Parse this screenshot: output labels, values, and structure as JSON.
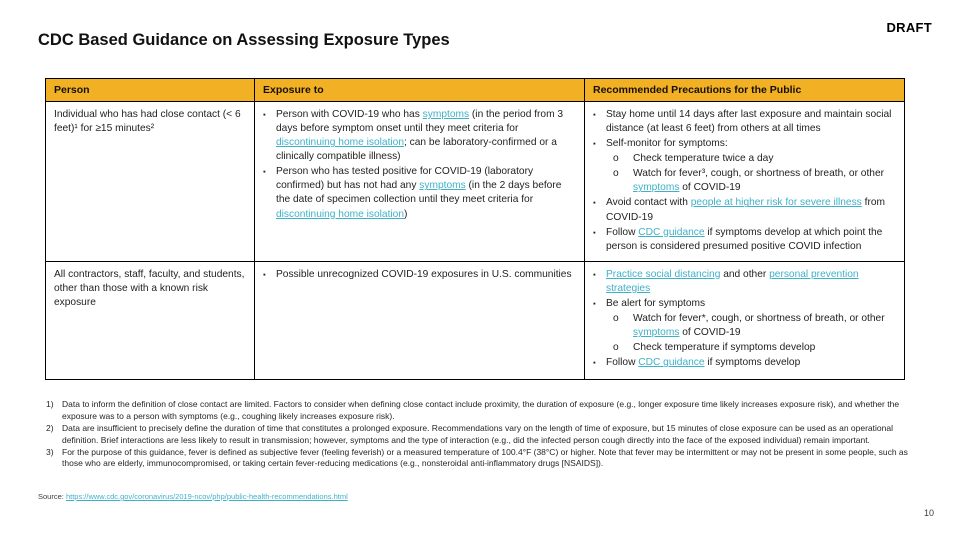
{
  "slide": {
    "title": "CDC Based Guidance on Assessing Exposure Types",
    "draft_label": "DRAFT",
    "page_number": "10"
  },
  "colors": {
    "header_bg": "#F2B024",
    "link": "#3EB1C8",
    "border": "#000000"
  },
  "table": {
    "headers": [
      "Person",
      "Exposure to",
      "Recommended Precautions for the Public"
    ],
    "rows": [
      {
        "person": "Individual who has had close contact (< 6 feet)¹ for ≥15 minutes²",
        "exposure_bullets": [
          {
            "indent": 0,
            "marker": "▪",
            "segments": [
              {
                "t": "Person with COVID-19 who has "
              },
              {
                "t": "symptoms",
                "link": true
              },
              {
                "t": " (in the period from 3 days before symptom onset until they meet criteria for "
              },
              {
                "t": "discontinuing home isolation",
                "link": true
              },
              {
                "t": "; can be laboratory-confirmed or a clinically compatible illness)"
              }
            ]
          },
          {
            "indent": 0,
            "marker": "▪",
            "segments": [
              {
                "t": "Person who has tested positive for COVID-19 (laboratory confirmed) but has not had any "
              },
              {
                "t": "symptoms",
                "link": true
              },
              {
                "t": " (in the 2 days before the date of specimen collection until they meet criteria for "
              },
              {
                "t": "discontinuing home isolation",
                "link": true
              },
              {
                "t": ")"
              }
            ]
          }
        ],
        "precaution_bullets": [
          {
            "indent": 0,
            "marker": "▪",
            "segments": [
              {
                "t": "Stay home until 14 days after last exposure and maintain social distance (at least 6 feet) from others at all times"
              }
            ]
          },
          {
            "indent": 0,
            "marker": "▪",
            "segments": [
              {
                "t": "Self-monitor for symptoms:"
              }
            ]
          },
          {
            "indent": 1,
            "marker": "o",
            "segments": [
              {
                "t": "Check temperature twice a day"
              }
            ]
          },
          {
            "indent": 1,
            "marker": "o",
            "segments": [
              {
                "t": "Watch for fever³, cough, or shortness of breath, or other "
              },
              {
                "t": "symptoms",
                "link": true
              },
              {
                "t": " of COVID-19"
              }
            ]
          },
          {
            "indent": 0,
            "marker": "▪",
            "segments": [
              {
                "t": "Avoid contact with "
              },
              {
                "t": "people at higher risk for severe illness",
                "link": true
              },
              {
                "t": " from COVID-19"
              }
            ]
          },
          {
            "indent": 0,
            "marker": "▪",
            "segments": [
              {
                "t": "Follow "
              },
              {
                "t": "CDC guidance",
                "link": true
              },
              {
                "t": " if symptoms develop at which point the person is considered presumed positive COVID infection"
              }
            ]
          }
        ]
      },
      {
        "person": "All contractors, staff, faculty, and students, other than those with a known risk exposure",
        "exposure_bullets": [
          {
            "indent": 0,
            "marker": "▪",
            "segments": [
              {
                "t": "Possible unrecognized COVID-19 exposures in U.S. communities"
              }
            ]
          }
        ],
        "precaution_bullets": [
          {
            "indent": 0,
            "marker": "▪",
            "segments": [
              {
                "t": "Practice social distancing",
                "link": true
              },
              {
                "t": " and other "
              },
              {
                "t": "personal prevention strategies",
                "link": true
              }
            ]
          },
          {
            "indent": 0,
            "marker": "▪",
            "segments": [
              {
                "t": "Be alert for symptoms"
              }
            ]
          },
          {
            "indent": 1,
            "marker": "o",
            "segments": [
              {
                "t": "Watch for fever*, cough, or shortness of breath, or other "
              },
              {
                "t": "symptoms",
                "link": true
              },
              {
                "t": " of COVID-19"
              }
            ]
          },
          {
            "indent": 1,
            "marker": "o",
            "segments": [
              {
                "t": "Check temperature if symptoms develop"
              }
            ]
          },
          {
            "indent": 0,
            "marker": "▪",
            "segments": [
              {
                "t": "Follow "
              },
              {
                "t": "CDC guidance",
                "link": true
              },
              {
                "t": " if symptoms develop"
              }
            ]
          }
        ]
      }
    ]
  },
  "footnotes": [
    {
      "num": "1)",
      "text": "Data to inform the definition of close contact are limited. Factors to consider when defining close contact include proximity, the duration of exposure (e.g., longer exposure time likely increases exposure risk), and whether the exposure was to a person with symptoms (e.g., coughing likely increases exposure risk)."
    },
    {
      "num": "2)",
      "text": "Data are insufficient to precisely define the duration of time that constitutes a prolonged exposure. Recommendations vary on the length of time of exposure, but 15 minutes of close exposure can be used as an operational definition. Brief interactions are less likely to result in transmission; however, symptoms and the type of interaction (e.g., did the infected person cough directly into the face of the exposed individual) remain important."
    },
    {
      "num": "3)",
      "text": "For the purpose of this guidance, fever is defined as subjective fever (feeling feverish) or a measured temperature of 100.4°F (38°C) or higher. Note that fever may be intermittent or may not be present in some people, such as those who are elderly, immunocompromised, or taking certain fever-reducing medications (e.g., nonsteroidal anti-inflammatory drugs [NSAIDS])."
    }
  ],
  "source": {
    "label": "Source: ",
    "url_text": "https://www.cdc.gov/coronavirus/2019-ncov/php/public-health-recommendations.html"
  }
}
